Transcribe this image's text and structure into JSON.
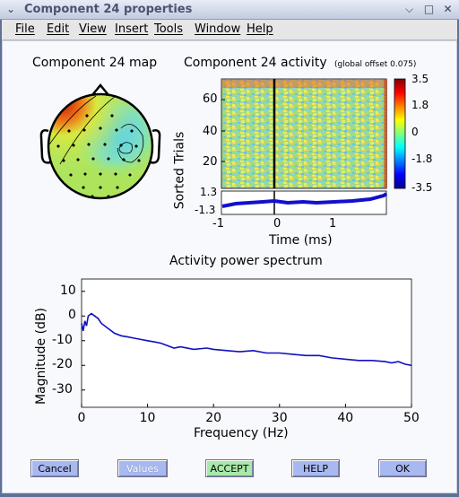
{
  "window": {
    "title": "Component 24 properties",
    "controls": [
      "chevron-down",
      "minimize",
      "maximize",
      "close"
    ]
  },
  "menubar": {
    "items": [
      "File",
      "Edit",
      "View",
      "Insert",
      "Tools",
      "Window",
      "Help"
    ]
  },
  "map": {
    "title": "Component 24 map"
  },
  "erpimage": {
    "title": "Component 24 activity",
    "subtitle": "(global offset 0.075)",
    "ylabel": "Sorted Trials",
    "xlabel": "Time (ms)",
    "yticks": [
      "60",
      "40",
      "20"
    ],
    "trace_ticks": [
      "1.3",
      "-1.3"
    ],
    "xticks": [
      "-1",
      "0",
      "1"
    ],
    "colorbar_ticks": [
      "3.5",
      "1.8",
      "0",
      "-1.8",
      "-3.5"
    ]
  },
  "chart_data": {
    "type": "line",
    "title": "Activity power spectrum",
    "xlabel": "Frequency (Hz)",
    "ylabel": "Magnitude (dB)",
    "xlim": [
      0,
      50
    ],
    "ylim": [
      -37,
      15
    ],
    "xticks": [
      "0",
      "10",
      "20",
      "30",
      "40",
      "50"
    ],
    "yticks": [
      "10",
      "0",
      "-10",
      "-20",
      "-30"
    ],
    "series": [
      {
        "color": "#1010c0",
        "x": [
          0,
          0.25,
          0.5,
          0.75,
          1,
          1.5,
          2,
          2.5,
          3,
          4,
          5,
          6,
          7,
          8,
          9,
          10,
          11,
          12,
          13,
          14,
          15,
          17,
          19,
          20,
          22,
          24,
          26,
          28,
          30,
          32,
          34,
          36,
          38,
          40,
          42,
          44,
          46,
          47,
          48,
          49,
          50
        ],
        "y": [
          -3,
          -6,
          -2,
          -4,
          0,
          1,
          0,
          -1,
          -3,
          -5,
          -7,
          -8,
          -8.5,
          -9,
          -9.5,
          -10,
          -10.5,
          -11,
          -12,
          -13,
          -12.5,
          -13.5,
          -13,
          -13.5,
          -14,
          -14.5,
          -14,
          -15,
          -15,
          -15.5,
          -16,
          -16,
          -17,
          -17.5,
          -18,
          -18,
          -18.5,
          -19,
          -18.5,
          -19.5,
          -20
        ]
      }
    ]
  },
  "buttons": [
    {
      "label": "Cancel",
      "bg": "#a8b8f0"
    },
    {
      "label": "Values",
      "bg": "#a8b8f0",
      "disabled": true
    },
    {
      "label": "ACCEPT",
      "bg": "#a8e8a8"
    },
    {
      "label": "HELP",
      "bg": "#a8b8f0"
    },
    {
      "label": "OK",
      "bg": "#a8b8f0"
    }
  ]
}
